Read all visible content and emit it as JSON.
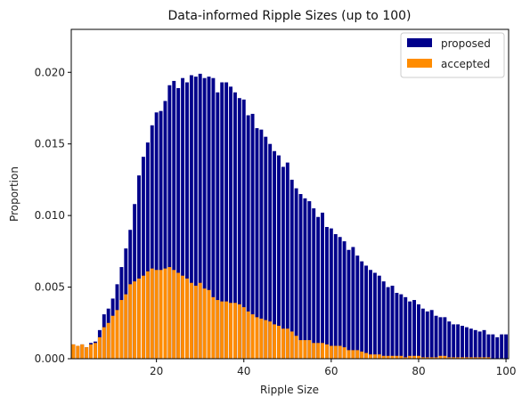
{
  "chart_data": {
    "type": "bar",
    "title": "Data-informed Ripple Sizes (up to 100)",
    "xlabel": "Ripple Size",
    "ylabel": "Proportion",
    "xlim": [
      0.5,
      100.6
    ],
    "ylim": [
      0,
      0.023
    ],
    "xticks": [
      20,
      40,
      60,
      80,
      100
    ],
    "yticks": [
      0.0,
      0.005,
      0.01,
      0.015,
      0.02
    ],
    "ytick_labels": [
      "0.000",
      "0.005",
      "0.010",
      "0.015",
      "0.020"
    ],
    "legend_position": "top-right",
    "grid": false,
    "x": [
      1,
      2,
      3,
      4,
      5,
      6,
      7,
      8,
      9,
      10,
      11,
      12,
      13,
      14,
      15,
      16,
      17,
      18,
      19,
      20,
      21,
      22,
      23,
      24,
      25,
      26,
      27,
      28,
      29,
      30,
      31,
      32,
      33,
      34,
      35,
      36,
      37,
      38,
      39,
      40,
      41,
      42,
      43,
      44,
      45,
      46,
      47,
      48,
      49,
      50,
      51,
      52,
      53,
      54,
      55,
      56,
      57,
      58,
      59,
      60,
      61,
      62,
      63,
      64,
      65,
      66,
      67,
      68,
      69,
      70,
      71,
      72,
      73,
      74,
      75,
      76,
      77,
      78,
      79,
      80,
      81,
      82,
      83,
      84,
      85,
      86,
      87,
      88,
      89,
      90,
      91,
      92,
      93,
      94,
      95,
      96,
      97,
      98,
      99,
      100
    ],
    "series": [
      {
        "name": "proposed",
        "color": "#00008B",
        "values": [
          0.001,
          0.0009,
          0.001,
          0.0008,
          0.0011,
          0.0012,
          0.002,
          0.0031,
          0.0035,
          0.0042,
          0.0052,
          0.0064,
          0.0077,
          0.009,
          0.0108,
          0.0128,
          0.0141,
          0.0151,
          0.0163,
          0.0172,
          0.0173,
          0.018,
          0.0191,
          0.0194,
          0.0189,
          0.0196,
          0.0193,
          0.0198,
          0.0197,
          0.0199,
          0.0196,
          0.0197,
          0.0196,
          0.0186,
          0.0193,
          0.0193,
          0.019,
          0.0186,
          0.0182,
          0.0181,
          0.017,
          0.0171,
          0.0161,
          0.016,
          0.0155,
          0.015,
          0.0145,
          0.0142,
          0.0134,
          0.0137,
          0.0125,
          0.0119,
          0.0115,
          0.0112,
          0.011,
          0.0105,
          0.0099,
          0.0102,
          0.0092,
          0.0091,
          0.0087,
          0.0085,
          0.0082,
          0.0076,
          0.0078,
          0.0072,
          0.0068,
          0.0065,
          0.0062,
          0.006,
          0.0058,
          0.0054,
          0.005,
          0.0051,
          0.0046,
          0.0045,
          0.0043,
          0.004,
          0.0041,
          0.0038,
          0.0035,
          0.0033,
          0.0034,
          0.003,
          0.0029,
          0.0029,
          0.0026,
          0.0024,
          0.0024,
          0.0023,
          0.0022,
          0.0021,
          0.002,
          0.0019,
          0.002,
          0.0017,
          0.0017,
          0.0015,
          0.0017,
          0.0017
        ]
      },
      {
        "name": "accepted",
        "color": "#FF8C00",
        "values": [
          0.001,
          0.0009,
          0.001,
          0.0008,
          0.001,
          0.0011,
          0.0015,
          0.0022,
          0.0025,
          0.003,
          0.0034,
          0.0041,
          0.0045,
          0.0052,
          0.0054,
          0.0056,
          0.0058,
          0.0061,
          0.0063,
          0.0062,
          0.0062,
          0.0063,
          0.0064,
          0.0062,
          0.006,
          0.0058,
          0.0056,
          0.0053,
          0.0051,
          0.0053,
          0.0049,
          0.0048,
          0.0043,
          0.0041,
          0.004,
          0.004,
          0.0039,
          0.0039,
          0.0038,
          0.0036,
          0.0033,
          0.0031,
          0.0029,
          0.0028,
          0.0027,
          0.0026,
          0.0024,
          0.0023,
          0.0021,
          0.0021,
          0.0019,
          0.0016,
          0.0013,
          0.0013,
          0.0013,
          0.0011,
          0.0011,
          0.0011,
          0.001,
          0.0009,
          0.0009,
          0.0009,
          0.0008,
          0.0006,
          0.0006,
          0.0006,
          0.0005,
          0.0004,
          0.0003,
          0.0003,
          0.0003,
          0.0002,
          0.0002,
          0.0002,
          0.0002,
          0.0002,
          0.0001,
          0.0002,
          0.0002,
          0.0002,
          0.0001,
          0.0001,
          0.0001,
          0.0001,
          0.0002,
          0.0002,
          0.0001,
          0.0001,
          0.0001,
          0.0001,
          0.0001,
          0.0001,
          0.0001,
          0.0001,
          0.0001,
          0.0001,
          0.0,
          0.0,
          0.0,
          0.0
        ]
      }
    ]
  }
}
